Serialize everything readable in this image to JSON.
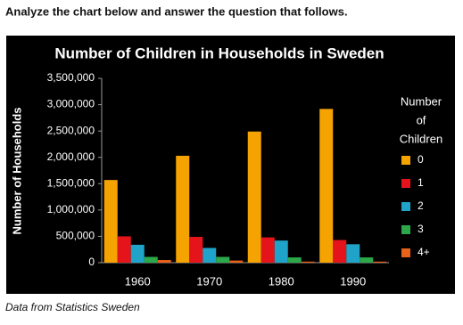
{
  "header": "Analyze the chart below and answer the question that follows.",
  "source": "Data from Statistics Sweden",
  "chart_data": {
    "type": "bar",
    "title": "Number of Children in Households in Sweden",
    "y_label": "Number of Households",
    "legend_title": [
      "Number",
      "of",
      "Children"
    ],
    "legend_position": "right",
    "categories": [
      "1960",
      "1970",
      "1980",
      "1990"
    ],
    "series": [
      {
        "name": "0",
        "color": "#f5a300",
        "values": [
          1570000,
          2030000,
          2490000,
          2920000
        ]
      },
      {
        "name": "1",
        "color": "#e5141b",
        "values": [
          500000,
          490000,
          480000,
          430000
        ]
      },
      {
        "name": "2",
        "color": "#1fa3c8",
        "values": [
          340000,
          280000,
          420000,
          350000
        ]
      },
      {
        "name": "3",
        "color": "#2ca84a",
        "values": [
          110000,
          110000,
          100000,
          100000
        ]
      },
      {
        "name": "4+",
        "color": "#e8621a",
        "values": [
          50000,
          40000,
          20000,
          20000
        ]
      }
    ],
    "ylim": [
      0,
      3500000
    ],
    "yticks": [
      0,
      {
        "value": 500000,
        "label": "500,000"
      },
      {
        "value": 1000000,
        "label": "1,000,000"
      },
      {
        "value": 1500000,
        "label": "1,500,000"
      },
      {
        "value": 2000000,
        "label": "2,000,000"
      },
      {
        "value": 2500000,
        "label": "2,500,000"
      },
      {
        "value": 3000000,
        "label": "3,000,000"
      },
      {
        "value": 3500000,
        "label": "3,500,000"
      }
    ],
    "grid": false
  }
}
